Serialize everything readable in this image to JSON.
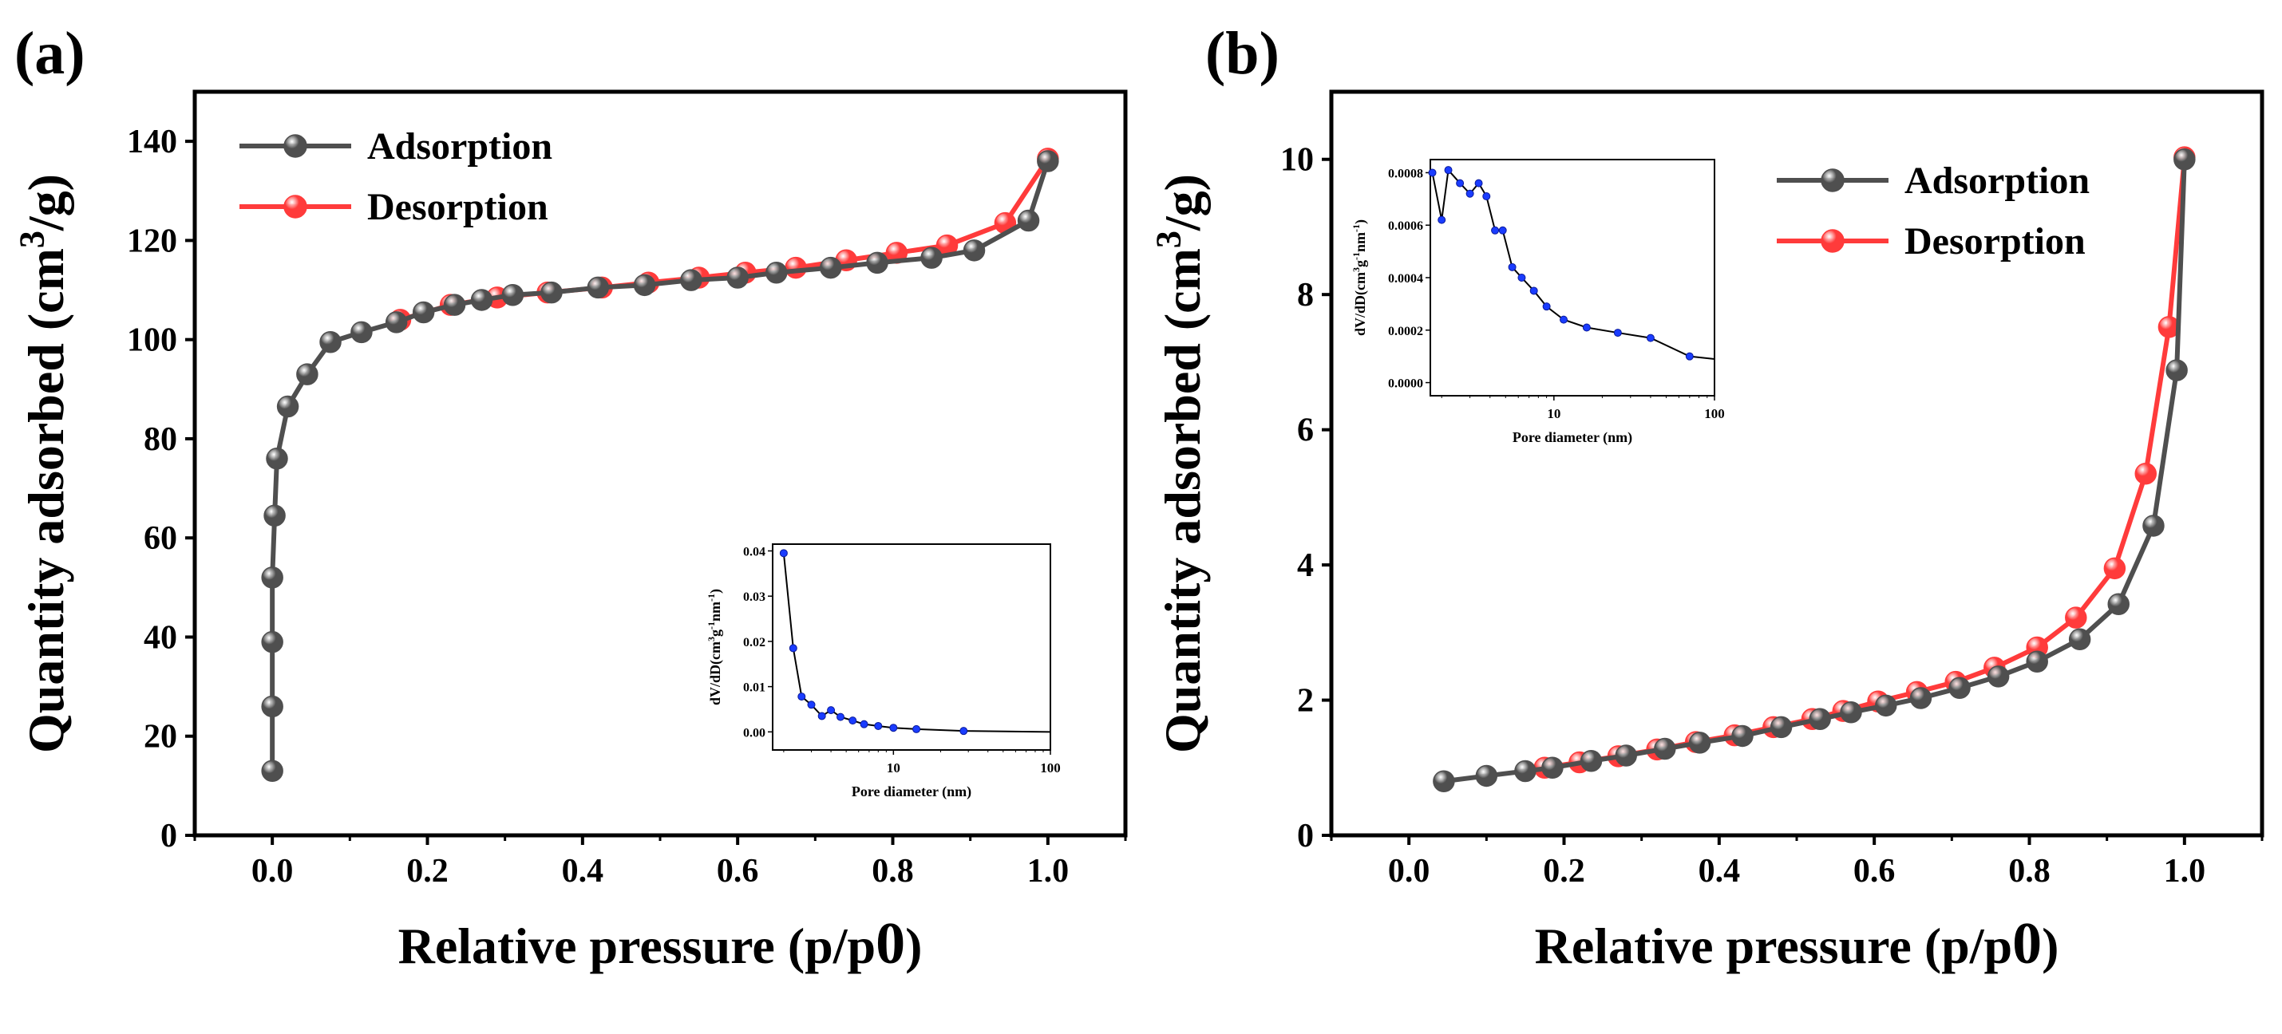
{
  "colors": {
    "adsorption": "#4f4f4f",
    "desorption": "#ff3b3b",
    "inset_line": "#000000",
    "inset_marker": "#1a3cff"
  },
  "chart_data": [
    {
      "panel_label": "(a)",
      "type": "line",
      "xlabel": "Relative pressure (p/p0)",
      "ylabel": "Quantity adsorbed (cm3/g)",
      "xlim": [
        -0.1,
        1.1
      ],
      "ylim": [
        0,
        150
      ],
      "xticks": [
        0.0,
        0.2,
        0.4,
        0.6,
        0.8,
        1.0
      ],
      "xtick_labels": [
        "0.0",
        "0.2",
        "0.4",
        "0.6",
        "0.8",
        "1.0"
      ],
      "yticks": [
        0,
        20,
        40,
        60,
        80,
        100,
        120,
        140
      ],
      "ytick_labels": [
        "0",
        "20",
        "40",
        "60",
        "80",
        "100",
        "120",
        "140"
      ],
      "legend_position": "top-left",
      "series": [
        {
          "name": "Adsorption",
          "x": [
            0.0,
            0.0,
            0.0,
            0.0,
            0.003,
            0.006,
            0.02,
            0.045,
            0.075,
            0.115,
            0.16,
            0.195,
            0.235,
            0.27,
            0.31,
            0.36,
            0.42,
            0.48,
            0.54,
            0.6,
            0.65,
            0.72,
            0.78,
            0.85,
            0.905,
            0.975,
            1.0
          ],
          "y": [
            13,
            26,
            39,
            52,
            64.5,
            76,
            86.5,
            93,
            99.5,
            101.5,
            103.5,
            105.5,
            107,
            108,
            109,
            109.5,
            110.5,
            111,
            112,
            112.5,
            113.5,
            114.5,
            115.5,
            116.5,
            118,
            124,
            136
          ]
        },
        {
          "name": "Desorption",
          "x": [
            0.165,
            0.23,
            0.29,
            0.355,
            0.425,
            0.485,
            0.55,
            0.61,
            0.675,
            0.74,
            0.805,
            0.87,
            0.945,
            1.0
          ],
          "y": [
            104,
            107,
            108.5,
            109.5,
            110.5,
            111.5,
            112.5,
            113.5,
            114.5,
            116,
            117.5,
            119,
            123.5,
            136.5
          ]
        }
      ],
      "inset": {
        "type": "line",
        "xscale": "log",
        "xlabel": "Pore diameter (nm)",
        "ylabel": "dV/dD(cm3g-1nm-1)",
        "xlim": [
          1.7,
          100
        ],
        "ylim": [
          -0.004,
          0.0415
        ],
        "xticks": [
          10,
          100
        ],
        "xtick_labels": [
          "10",
          "100"
        ],
        "yticks": [
          0.0,
          0.01,
          0.02,
          0.03,
          0.04
        ],
        "ytick_labels": [
          "0.00",
          "0.01",
          "0.02",
          "0.03",
          "0.04"
        ],
        "x": [
          2.0,
          2.3,
          2.6,
          3.0,
          3.5,
          4.0,
          4.6,
          5.5,
          6.5,
          8.0,
          10.0,
          14.0,
          28.0,
          100.0
        ],
        "y": [
          0.0395,
          0.0185,
          0.0078,
          0.006,
          0.0035,
          0.0048,
          0.0033,
          0.0025,
          0.0017,
          0.0013,
          0.0009,
          0.0006,
          0.0002,
          0.0
        ]
      }
    },
    {
      "panel_label": "(b)",
      "type": "line",
      "xlabel": "Relative pressure (p/p0)",
      "ylabel": "Quantity adsorbed (cm3/g)",
      "xlim": [
        -0.1,
        1.1
      ],
      "ylim": [
        0,
        11
      ],
      "xticks": [
        0.0,
        0.2,
        0.4,
        0.6,
        0.8,
        1.0
      ],
      "xtick_labels": [
        "0.0",
        "0.2",
        "0.4",
        "0.6",
        "0.8",
        "1.0"
      ],
      "yticks": [
        0,
        2,
        4,
        6,
        8,
        10
      ],
      "ytick_labels": [
        "0",
        "2",
        "4",
        "6",
        "8",
        "10"
      ],
      "legend_position": "top-right",
      "series": [
        {
          "name": "Adsorption",
          "x": [
            0.045,
            0.1,
            0.15,
            0.185,
            0.235,
            0.28,
            0.33,
            0.375,
            0.43,
            0.48,
            0.53,
            0.57,
            0.615,
            0.66,
            0.71,
            0.76,
            0.81,
            0.865,
            0.915,
            0.96,
            0.99,
            1.0
          ],
          "y": [
            0.8,
            0.88,
            0.95,
            1.0,
            1.1,
            1.18,
            1.28,
            1.37,
            1.47,
            1.6,
            1.72,
            1.82,
            1.92,
            2.03,
            2.18,
            2.35,
            2.57,
            2.9,
            3.42,
            4.58,
            6.88,
            10.0
          ],
          "legend_marker_fill": "#3a3a3a"
        },
        {
          "name": "Desorption",
          "x": [
            0.175,
            0.22,
            0.27,
            0.32,
            0.37,
            0.42,
            0.47,
            0.52,
            0.56,
            0.605,
            0.655,
            0.705,
            0.755,
            0.81,
            0.86,
            0.91,
            0.95,
            0.98,
            1.0
          ],
          "y": [
            1.0,
            1.08,
            1.17,
            1.27,
            1.38,
            1.48,
            1.6,
            1.72,
            1.84,
            1.98,
            2.12,
            2.27,
            2.48,
            2.78,
            3.22,
            3.95,
            5.35,
            7.52,
            10.03
          ]
        }
      ],
      "inset": {
        "type": "line",
        "xscale": "log",
        "xlabel": "Pore diameter (nm)",
        "ylabel": "dV/dD(cm3g-1nm-1)",
        "xlim": [
          1.7,
          100
        ],
        "ylim": [
          -5e-05,
          0.00085
        ],
        "xticks": [
          10,
          100
        ],
        "xtick_labels": [
          "10",
          "100"
        ],
        "yticks": [
          0.0,
          0.0002,
          0.0004,
          0.0006,
          0.0008
        ],
        "ytick_labels": [
          "0.0000",
          "0.0002",
          "0.0004",
          "0.0006",
          "0.0008"
        ],
        "x": [
          1.75,
          2.0,
          2.2,
          2.6,
          3.0,
          3.4,
          3.8,
          4.3,
          4.8,
          5.5,
          6.3,
          7.5,
          9.0,
          11.5,
          16.0,
          25.0,
          40.0,
          70.0,
          100.0
        ],
        "y": [
          0.0008,
          0.00062,
          0.00081,
          0.00076,
          0.00072,
          0.00076,
          0.00071,
          0.00058,
          0.00058,
          0.00044,
          0.0004,
          0.00035,
          0.00029,
          0.00024,
          0.00021,
          0.00019,
          0.00017,
          0.0001,
          9e-05
        ]
      }
    }
  ]
}
